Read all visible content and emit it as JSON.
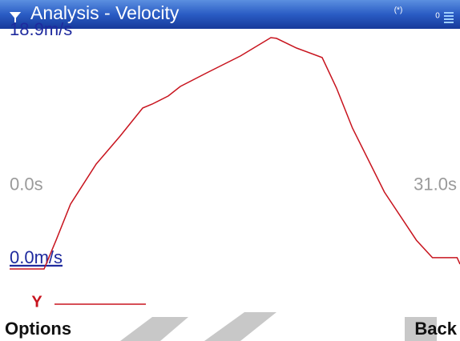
{
  "header": {
    "title": "Analysis - Velocity",
    "status": [
      "(*)",
      "0"
    ]
  },
  "chart_data": {
    "type": "line",
    "x": [
      0,
      2.37,
      3.2,
      4.19,
      5.96,
      7.61,
      9.16,
      9.82,
      10.92,
      11.75,
      13.68,
      15.89,
      17.98,
      18.37,
      19.75,
      21.51,
      22.5,
      23.6,
      25.8,
      28.0,
      29.1,
      30.8,
      31
    ],
    "series": [
      {
        "name": "Y",
        "color": "#c8141e",
        "values": [
          0,
          0,
          2.35,
          5.3,
          8.57,
          10.86,
          13.15,
          13.47,
          14.13,
          14.91,
          16.09,
          17.4,
          18.9,
          18.84,
          18.05,
          17.27,
          14.78,
          11.51,
          6.28,
          2.35,
          0.92,
          0.92,
          0.39
        ]
      }
    ],
    "xlim": [
      0,
      31
    ],
    "ylim": [
      0,
      18.9
    ],
    "xticks": [
      {
        "value": 0,
        "label": "0.0s"
      },
      {
        "value": 31,
        "label": "31.0s"
      }
    ],
    "yticks": [
      {
        "value": 18.9,
        "label": "18.9m/s"
      },
      {
        "value": 0,
        "label": "0.0m/s"
      }
    ]
  },
  "softkeys": {
    "left": "Options",
    "right": "Back"
  }
}
